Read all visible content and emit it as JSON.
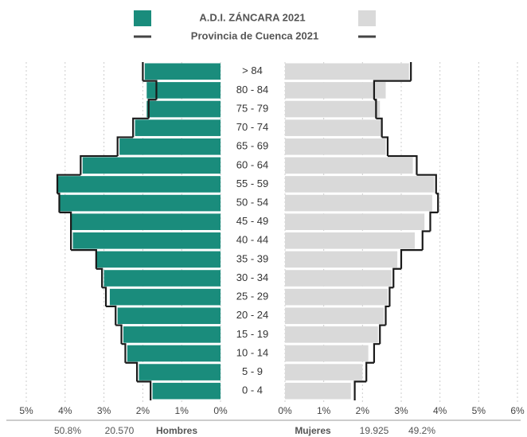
{
  "chart_data": {
    "type": "pyramid",
    "categories": [
      "> 84",
      "80 - 84",
      "75 - 79",
      "70 - 74",
      "65 - 69",
      "60 - 64",
      "55 - 59",
      "50 - 54",
      "45 - 49",
      "40 - 44",
      "35 - 39",
      "30 - 34",
      "25 - 29",
      "20 - 24",
      "15 - 19",
      "10 - 14",
      "5 - 9",
      "0 - 4"
    ],
    "series": [
      {
        "name": "A.D.I. ZÁNCARA 2021",
        "kind": "bar",
        "colors": [
          "#1a8c7c",
          "#d9d9d9"
        ],
        "left": [
          1.95,
          1.9,
          1.9,
          2.2,
          2.6,
          3.55,
          4.2,
          4.15,
          3.85,
          3.8,
          3.2,
          3.0,
          2.85,
          2.65,
          2.5,
          2.4,
          2.1,
          1.75
        ],
        "right": [
          3.2,
          2.6,
          2.45,
          2.5,
          2.6,
          3.3,
          3.85,
          3.8,
          3.6,
          3.35,
          2.9,
          2.75,
          2.65,
          2.55,
          2.4,
          2.15,
          2.0,
          1.7
        ]
      },
      {
        "name": "Provincia de Cuenca 2021",
        "kind": "line",
        "color": "#1a1a1a",
        "left": [
          2.0,
          1.65,
          1.85,
          2.25,
          2.65,
          3.6,
          4.2,
          4.15,
          3.85,
          3.85,
          3.2,
          3.05,
          2.95,
          2.7,
          2.55,
          2.45,
          2.15,
          1.8
        ],
        "right": [
          3.25,
          2.3,
          2.35,
          2.5,
          2.65,
          3.4,
          3.9,
          3.95,
          3.75,
          3.55,
          3.0,
          2.8,
          2.7,
          2.6,
          2.45,
          2.3,
          2.1,
          1.8
        ]
      }
    ],
    "xlim_left": [
      5,
      0
    ],
    "xticks_left": [
      {
        "value": 5,
        "label": "5%"
      },
      {
        "value": 4,
        "label": "4%"
      },
      {
        "value": 3,
        "label": "3%"
      },
      {
        "value": 2,
        "label": "2%"
      },
      {
        "value": 1,
        "label": "1%"
      },
      {
        "value": 0,
        "label": "0%"
      }
    ],
    "xlim_right": [
      0,
      6
    ],
    "xticks_right": [
      {
        "value": 0,
        "label": "0%"
      },
      {
        "value": 1,
        "label": "1%"
      },
      {
        "value": 2,
        "label": "2%"
      },
      {
        "value": 3,
        "label": "3%"
      },
      {
        "value": 4,
        "label": "4%"
      },
      {
        "value": 5,
        "label": "5%"
      },
      {
        "value": 6,
        "label": "6%"
      }
    ],
    "grid": true,
    "footer": [
      "50.8%",
      "20.570",
      "Hombres",
      "Mujeres",
      "19.925",
      "49.2%"
    ]
  }
}
